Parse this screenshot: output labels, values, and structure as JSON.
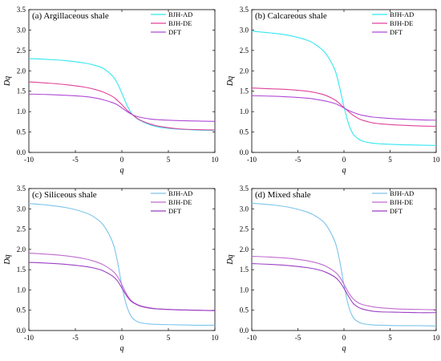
{
  "chart_data": [
    {
      "type": "line",
      "title": "(a) Argillaceous  shale",
      "xlabel": "q",
      "ylabel": "Dq",
      "xlim": [
        -10,
        10
      ],
      "ylim": [
        0,
        3.5
      ],
      "xticks": [
        -10,
        -5,
        0,
        5,
        10
      ],
      "yticks": [
        0.0,
        0.5,
        1.0,
        1.5,
        2.0,
        2.5,
        3.0,
        3.5
      ],
      "legend_position": "top-right",
      "x": [
        -10,
        -8,
        -6,
        -4,
        -3,
        -2,
        -1,
        -0.5,
        0,
        0.5,
        1,
        1.5,
        2,
        3,
        4,
        6,
        8,
        10
      ],
      "series": [
        {
          "name": "BJH-AD",
          "color": "#33e6f0",
          "values": [
            2.3,
            2.28,
            2.25,
            2.19,
            2.14,
            2.06,
            1.87,
            1.7,
            1.45,
            1.18,
            0.97,
            0.85,
            0.78,
            0.68,
            0.62,
            0.57,
            0.55,
            0.54
          ]
        },
        {
          "name": "BJH-DE",
          "color": "#e0429a",
          "values": [
            1.73,
            1.7,
            1.66,
            1.6,
            1.55,
            1.48,
            1.37,
            1.28,
            1.17,
            1.05,
            0.95,
            0.86,
            0.79,
            0.7,
            0.64,
            0.58,
            0.56,
            0.55
          ]
        },
        {
          "name": "DFT",
          "color": "#b04ad6",
          "values": [
            1.43,
            1.42,
            1.4,
            1.37,
            1.34,
            1.29,
            1.22,
            1.17,
            1.09,
            1.01,
            0.94,
            0.89,
            0.86,
            0.82,
            0.8,
            0.78,
            0.77,
            0.76
          ]
        }
      ]
    },
    {
      "type": "line",
      "title": "(b) Calcareous shale",
      "xlabel": "q",
      "ylabel": "Dq",
      "xlim": [
        -10,
        10
      ],
      "ylim": [
        0,
        3.5
      ],
      "xticks": [
        -10,
        -5,
        0,
        5,
        10
      ],
      "yticks": [
        0.0,
        0.5,
        1.0,
        1.5,
        2.0,
        2.5,
        3.0,
        3.5
      ],
      "legend_position": "top-right",
      "x": [
        -10,
        -8,
        -6,
        -4,
        -3,
        -2,
        -1,
        -0.5,
        0,
        0.5,
        1,
        1.5,
        2,
        3,
        4,
        6,
        8,
        10
      ],
      "series": [
        {
          "name": "BJH-AD",
          "color": "#33e6f0",
          "values": [
            2.97,
            2.93,
            2.87,
            2.75,
            2.63,
            2.43,
            2.03,
            1.62,
            1.12,
            0.7,
            0.45,
            0.34,
            0.28,
            0.23,
            0.21,
            0.19,
            0.18,
            0.17
          ]
        },
        {
          "name": "BJH-DE",
          "color": "#e0429a",
          "values": [
            1.58,
            1.56,
            1.54,
            1.5,
            1.46,
            1.4,
            1.29,
            1.2,
            1.1,
            1.0,
            0.91,
            0.84,
            0.79,
            0.73,
            0.7,
            0.67,
            0.65,
            0.64
          ]
        },
        {
          "name": "DFT",
          "color": "#b04ad6",
          "values": [
            1.39,
            1.38,
            1.36,
            1.33,
            1.3,
            1.26,
            1.2,
            1.15,
            1.09,
            1.03,
            0.98,
            0.94,
            0.91,
            0.87,
            0.85,
            0.82,
            0.8,
            0.79
          ]
        }
      ]
    },
    {
      "type": "line",
      "title": "(c) Siliceous shale",
      "xlabel": "q",
      "ylabel": "Dq",
      "xlim": [
        -10,
        10
      ],
      "ylim": [
        0,
        3.5
      ],
      "xticks": [
        -10,
        -5,
        0,
        5,
        10
      ],
      "yticks": [
        0.0,
        0.5,
        1.0,
        1.5,
        2.0,
        2.5,
        3.0,
        3.5
      ],
      "legend_position": "top-right",
      "x": [
        -10,
        -8,
        -6,
        -4,
        -3,
        -2,
        -1,
        -0.5,
        0,
        0.5,
        1,
        1.5,
        2,
        3,
        4,
        6,
        8,
        10
      ],
      "series": [
        {
          "name": "BJH-AD",
          "color": "#7cc4ea",
          "values": [
            3.13,
            3.09,
            3.03,
            2.91,
            2.8,
            2.6,
            2.18,
            1.73,
            1.1,
            0.62,
            0.35,
            0.24,
            0.19,
            0.16,
            0.15,
            0.14,
            0.13,
            0.13
          ]
        },
        {
          "name": "BJH-DE",
          "color": "#c06ad0",
          "values": [
            1.91,
            1.88,
            1.84,
            1.77,
            1.71,
            1.62,
            1.47,
            1.34,
            1.13,
            0.9,
            0.74,
            0.66,
            0.61,
            0.56,
            0.53,
            0.51,
            0.5,
            0.49
          ]
        },
        {
          "name": "DFT",
          "color": "#9b3fc4",
          "values": [
            1.68,
            1.66,
            1.63,
            1.58,
            1.54,
            1.47,
            1.34,
            1.23,
            1.05,
            0.86,
            0.72,
            0.65,
            0.6,
            0.55,
            0.53,
            0.51,
            0.5,
            0.49
          ]
        }
      ]
    },
    {
      "type": "line",
      "title": "(d) Mixed shale",
      "xlabel": "q",
      "ylabel": "Dq",
      "xlim": [
        -10,
        10
      ],
      "ylim": [
        0,
        3.5
      ],
      "xticks": [
        -10,
        -5,
        0,
        5,
        10
      ],
      "yticks": [
        0.0,
        0.5,
        1.0,
        1.5,
        2.0,
        2.5,
        3.0,
        3.5
      ],
      "legend_position": "top-right",
      "x": [
        -10,
        -8,
        -6,
        -4,
        -3,
        -2,
        -1,
        -0.5,
        0,
        0.5,
        1,
        1.5,
        2,
        3,
        4,
        6,
        8,
        10
      ],
      "series": [
        {
          "name": "BJH-AD",
          "color": "#7cc4ea",
          "values": [
            3.14,
            3.1,
            3.04,
            2.92,
            2.81,
            2.62,
            2.2,
            1.76,
            1.12,
            0.6,
            0.32,
            0.22,
            0.17,
            0.14,
            0.13,
            0.12,
            0.12,
            0.11
          ]
        },
        {
          "name": "BJH-DE",
          "color": "#c06ad0",
          "values": [
            1.83,
            1.81,
            1.78,
            1.72,
            1.67,
            1.59,
            1.45,
            1.33,
            1.14,
            0.93,
            0.78,
            0.69,
            0.64,
            0.59,
            0.56,
            0.53,
            0.52,
            0.51
          ]
        },
        {
          "name": "DFT",
          "color": "#9b3fc4",
          "values": [
            1.65,
            1.63,
            1.6,
            1.55,
            1.51,
            1.44,
            1.32,
            1.21,
            1.04,
            0.84,
            0.67,
            0.58,
            0.53,
            0.48,
            0.46,
            0.45,
            0.44,
            0.44
          ]
        }
      ]
    }
  ]
}
